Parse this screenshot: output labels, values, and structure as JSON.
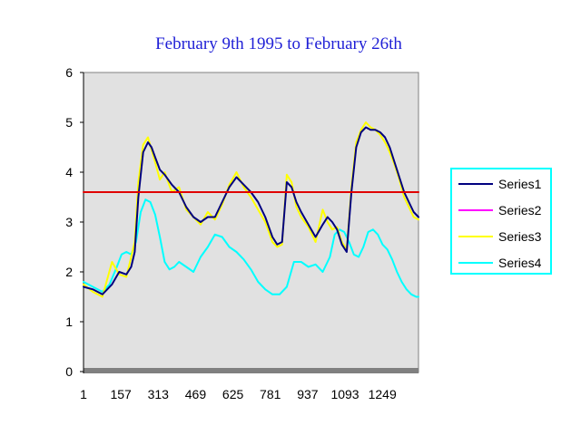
{
  "chart_data": {
    "type": "line",
    "title": "February 9th 1995 to February 26th",
    "xlabel": "",
    "ylabel": "",
    "ylim": [
      0,
      6
    ],
    "xlim": [
      1,
      1400
    ],
    "y_ticks": [
      "0",
      "1",
      "2",
      "3",
      "4",
      "5",
      "6"
    ],
    "x_ticks": [
      "1",
      "157",
      "313",
      "469",
      "625",
      "781",
      "937",
      "1093",
      "1249"
    ],
    "x_tick_values": [
      1,
      157,
      313,
      469,
      625,
      781,
      937,
      1093,
      1249
    ],
    "grid": false,
    "legend": "right",
    "plot_background": "#e1e1e1",
    "series": [
      {
        "name": "Series1",
        "color": "#00007f",
        "x": [
          1,
          40,
          80,
          120,
          150,
          180,
          200,
          215,
          230,
          250,
          270,
          285,
          300,
          320,
          340,
          370,
          400,
          430,
          460,
          490,
          520,
          550,
          580,
          610,
          640,
          670,
          700,
          730,
          760,
          790,
          810,
          830,
          850,
          870,
          890,
          910,
          940,
          970,
          1000,
          1020,
          1040,
          1060,
          1080,
          1100,
          1120,
          1140,
          1160,
          1180,
          1200,
          1220,
          1240,
          1260,
          1280,
          1300,
          1320,
          1340,
          1360,
          1380,
          1400
        ],
        "values": [
          1.7,
          1.65,
          1.55,
          1.75,
          2.0,
          1.95,
          2.1,
          2.4,
          3.5,
          4.4,
          4.6,
          4.5,
          4.3,
          4.05,
          3.95,
          3.75,
          3.6,
          3.3,
          3.1,
          3.0,
          3.1,
          3.1,
          3.4,
          3.7,
          3.9,
          3.75,
          3.6,
          3.4,
          3.1,
          2.7,
          2.55,
          2.6,
          3.8,
          3.7,
          3.4,
          3.2,
          2.95,
          2.7,
          2.95,
          3.1,
          3.0,
          2.85,
          2.55,
          2.4,
          3.6,
          4.5,
          4.8,
          4.9,
          4.85,
          4.85,
          4.8,
          4.7,
          4.5,
          4.2,
          3.9,
          3.6,
          3.4,
          3.2,
          3.1
        ]
      },
      {
        "name": "Series2",
        "color": "#ff00ff",
        "x": [
          1,
          1400
        ],
        "values": [
          3.6,
          3.6
        ]
      },
      {
        "name": "Series3",
        "color": "#ffff00",
        "x": [
          1,
          40,
          80,
          120,
          150,
          180,
          200,
          215,
          230,
          250,
          270,
          285,
          300,
          320,
          340,
          370,
          400,
          430,
          460,
          490,
          520,
          550,
          580,
          610,
          640,
          670,
          700,
          730,
          760,
          790,
          810,
          830,
          850,
          870,
          890,
          910,
          940,
          970,
          1000,
          1020,
          1040,
          1060,
          1080,
          1100,
          1120,
          1140,
          1160,
          1180,
          1200,
          1220,
          1240,
          1260,
          1280,
          1300,
          1320,
          1340,
          1360,
          1380,
          1400
        ],
        "values": [
          1.75,
          1.6,
          1.5,
          2.2,
          1.95,
          1.9,
          2.3,
          2.6,
          3.8,
          4.55,
          4.7,
          4.45,
          4.2,
          3.85,
          4.0,
          3.6,
          3.7,
          3.25,
          3.1,
          2.95,
          3.2,
          3.05,
          3.35,
          3.75,
          4.0,
          3.7,
          3.5,
          3.25,
          3.0,
          2.6,
          2.5,
          2.55,
          3.95,
          3.8,
          3.3,
          3.1,
          2.9,
          2.6,
          3.25,
          3.0,
          2.85,
          2.9,
          2.6,
          2.45,
          3.7,
          4.6,
          4.85,
          5.0,
          4.9,
          4.85,
          4.75,
          4.6,
          4.4,
          4.15,
          3.85,
          3.5,
          3.3,
          3.1,
          3.05
        ]
      },
      {
        "name": "Series4",
        "color": "#00ffff",
        "x": [
          1,
          40,
          80,
          110,
          140,
          160,
          180,
          200,
          220,
          240,
          260,
          280,
          300,
          320,
          340,
          360,
          380,
          400,
          430,
          460,
          490,
          520,
          550,
          580,
          610,
          640,
          670,
          700,
          730,
          760,
          790,
          820,
          850,
          880,
          910,
          940,
          970,
          1000,
          1030,
          1050,
          1070,
          1090,
          1110,
          1130,
          1150,
          1170,
          1190,
          1210,
          1230,
          1250,
          1270,
          1290,
          1310,
          1330,
          1350,
          1370,
          1390,
          1400
        ],
        "values": [
          1.8,
          1.7,
          1.6,
          1.75,
          2.1,
          2.35,
          2.4,
          2.35,
          2.6,
          3.2,
          3.45,
          3.4,
          3.15,
          2.7,
          2.2,
          2.05,
          2.1,
          2.2,
          2.1,
          2.0,
          2.3,
          2.5,
          2.75,
          2.7,
          2.5,
          2.4,
          2.25,
          2.05,
          1.8,
          1.65,
          1.55,
          1.55,
          1.7,
          2.2,
          2.2,
          2.1,
          2.15,
          2.0,
          2.3,
          2.75,
          2.85,
          2.8,
          2.6,
          2.35,
          2.3,
          2.5,
          2.8,
          2.85,
          2.75,
          2.55,
          2.45,
          2.25,
          2.0,
          1.8,
          1.65,
          1.55,
          1.5,
          1.5
        ]
      }
    ]
  }
}
